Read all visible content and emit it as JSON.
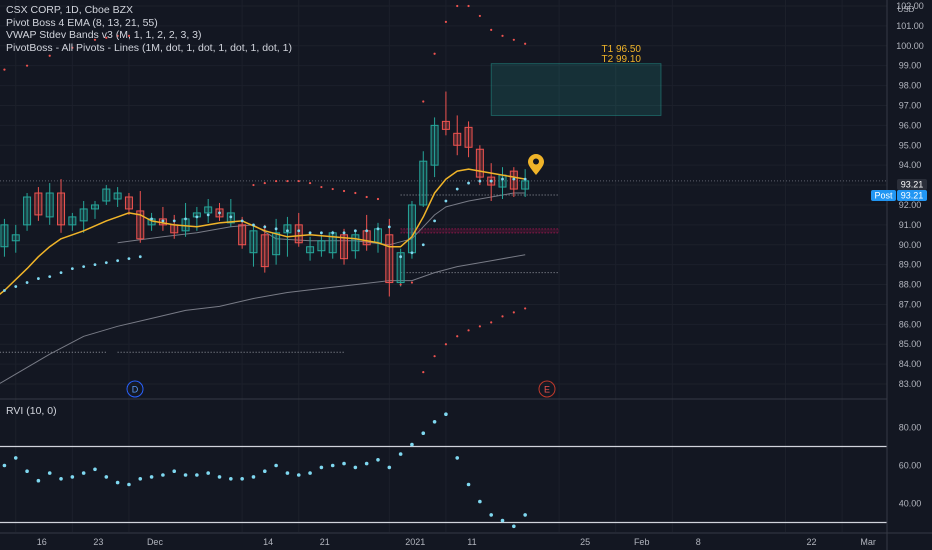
{
  "legend": {
    "title": "CSX CORP, 1D, Cboe BZX",
    "ind1": "Pivot Boss 4 EMA (8, 13, 21, 55)",
    "ind2": "VWAP Stdev Bands v3 (M, 1, 1, 2, 2, 3, 3)",
    "ind3": "PivotBoss - All Pivots - Lines (1M, dot, 1, dot, 1, dot, 1, dot, 1)"
  },
  "rvi_label": "RVI (10, 0)",
  "currency": "USD",
  "targets": {
    "t1": "T1 96.50",
    "t2": "T2 99.10"
  },
  "price_tags": {
    "last": "93.21",
    "post_label": "Post",
    "post": "93.21"
  },
  "markers": {
    "d": "D",
    "e": "E"
  },
  "colors": {
    "up": "#26a69a",
    "down": "#ef5350",
    "ema": "#f0b429",
    "vwap": "#787b86",
    "dots": "#7fd8f0",
    "bg": "#131722",
    "target_box": "#26a69a",
    "pin": "#f0b429"
  },
  "chart_data": [
    {
      "type": "candlestick",
      "title": "CSX CORP, 1D, Cboe BZX",
      "y_axis": {
        "ticks": [
          "83.00",
          "84.00",
          "85.00",
          "86.00",
          "87.00",
          "88.00",
          "89.00",
          "90.00",
          "91.00",
          "92.00",
          "93.00",
          "94.00",
          "95.00",
          "96.00",
          "97.00",
          "98.00",
          "99.00",
          "100.00",
          "101.00",
          "102.00"
        ],
        "ylim": [
          82.6,
          102.2
        ]
      },
      "x_axis": {
        "ticks": [
          {
            "label": "16",
            "i": 0
          },
          {
            "label": "23",
            "i": 5
          },
          {
            "label": "Dec",
            "i": 10
          },
          {
            "label": "14",
            "i": 20
          },
          {
            "label": "21",
            "i": 25
          },
          {
            "label": "2021",
            "i": 33
          },
          {
            "label": "11",
            "i": 38
          },
          {
            "label": "25",
            "i": 48
          },
          {
            "label": "Feb",
            "i": 53
          },
          {
            "label": "8",
            "i": 58
          },
          {
            "label": "22",
            "i": 68
          },
          {
            "label": "Mar",
            "i": 73
          }
        ],
        "first_index": -3,
        "last_index": 77
      },
      "candles": [
        {
          "i": -3,
          "o": 88.5,
          "h": 89.5,
          "l": 86.8,
          "c": 87.5
        },
        {
          "i": -2,
          "o": 89.2,
          "h": 90.2,
          "l": 87.9,
          "c": 89.6
        },
        {
          "i": -1,
          "o": 89.9,
          "h": 91.3,
          "l": 89.4,
          "c": 91.0
        },
        {
          "i": 0,
          "o": 90.2,
          "h": 91.0,
          "l": 89.6,
          "c": 90.5
        },
        {
          "i": 1,
          "o": 91.0,
          "h": 92.6,
          "l": 90.7,
          "c": 92.4
        },
        {
          "i": 2,
          "o": 92.6,
          "h": 92.9,
          "l": 91.2,
          "c": 91.5
        },
        {
          "i": 3,
          "o": 91.4,
          "h": 93.1,
          "l": 91.0,
          "c": 92.6
        },
        {
          "i": 4,
          "o": 92.6,
          "h": 93.3,
          "l": 90.6,
          "c": 91.0
        },
        {
          "i": 5,
          "o": 91.0,
          "h": 91.6,
          "l": 90.7,
          "c": 91.4
        },
        {
          "i": 6,
          "o": 91.2,
          "h": 92.2,
          "l": 90.6,
          "c": 91.8
        },
        {
          "i": 7,
          "o": 91.8,
          "h": 92.2,
          "l": 91.3,
          "c": 92.0
        },
        {
          "i": 8,
          "o": 92.2,
          "h": 93.0,
          "l": 92.0,
          "c": 92.8
        },
        {
          "i": 9,
          "o": 92.3,
          "h": 92.9,
          "l": 91.9,
          "c": 92.6
        },
        {
          "i": 10,
          "o": 92.4,
          "h": 92.6,
          "l": 91.5,
          "c": 91.8
        },
        {
          "i": 11,
          "o": 91.7,
          "h": 92.7,
          "l": 90.1,
          "c": 90.3
        },
        {
          "i": 12,
          "o": 91.0,
          "h": 91.6,
          "l": 90.7,
          "c": 91.3
        },
        {
          "i": 13,
          "o": 91.3,
          "h": 91.9,
          "l": 90.7,
          "c": 91.0
        },
        {
          "i": 14,
          "o": 91.0,
          "h": 91.5,
          "l": 90.3,
          "c": 90.6
        },
        {
          "i": 15,
          "o": 90.7,
          "h": 92.1,
          "l": 90.4,
          "c": 91.3
        },
        {
          "i": 16,
          "o": 91.4,
          "h": 91.9,
          "l": 90.7,
          "c": 91.6
        },
        {
          "i": 17,
          "o": 91.6,
          "h": 92.3,
          "l": 91.1,
          "c": 91.9
        },
        {
          "i": 18,
          "o": 91.8,
          "h": 92.1,
          "l": 91.2,
          "c": 91.4
        },
        {
          "i": 19,
          "o": 91.1,
          "h": 92.3,
          "l": 90.9,
          "c": 91.6
        },
        {
          "i": 20,
          "o": 91.0,
          "h": 91.4,
          "l": 89.8,
          "c": 90.0
        },
        {
          "i": 21,
          "o": 89.6,
          "h": 91.0,
          "l": 88.9,
          "c": 90.7
        },
        {
          "i": 22,
          "o": 90.5,
          "h": 91.0,
          "l": 88.6,
          "c": 88.9
        },
        {
          "i": 23,
          "o": 89.5,
          "h": 91.3,
          "l": 89.0,
          "c": 90.6
        },
        {
          "i": 24,
          "o": 90.6,
          "h": 91.4,
          "l": 89.4,
          "c": 91.0
        },
        {
          "i": 25,
          "o": 91.0,
          "h": 91.6,
          "l": 89.9,
          "c": 90.1
        },
        {
          "i": 26,
          "o": 89.6,
          "h": 90.4,
          "l": 89.2,
          "c": 89.9
        },
        {
          "i": 27,
          "o": 89.7,
          "h": 90.5,
          "l": 89.4,
          "c": 90.2
        },
        {
          "i": 28,
          "o": 89.6,
          "h": 90.7,
          "l": 89.3,
          "c": 90.6
        },
        {
          "i": 29,
          "o": 90.5,
          "h": 90.8,
          "l": 89.0,
          "c": 89.3
        },
        {
          "i": 30,
          "o": 89.7,
          "h": 90.7,
          "l": 89.3,
          "c": 90.5
        },
        {
          "i": 31,
          "o": 90.7,
          "h": 91.5,
          "l": 89.7,
          "c": 90.0
        },
        {
          "i": 32,
          "o": 90.1,
          "h": 91.1,
          "l": 89.6,
          "c": 90.8
        },
        {
          "i": 33,
          "o": 90.5,
          "h": 91.3,
          "l": 87.4,
          "c": 88.1
        },
        {
          "i": 34,
          "o": 88.1,
          "h": 89.8,
          "l": 87.9,
          "c": 89.6
        },
        {
          "i": 35,
          "o": 89.6,
          "h": 92.2,
          "l": 89.3,
          "c": 92.0
        },
        {
          "i": 36,
          "o": 92.0,
          "h": 94.7,
          "l": 91.9,
          "c": 94.2
        },
        {
          "i": 37,
          "o": 94.0,
          "h": 96.4,
          "l": 93.4,
          "c": 96.0
        },
        {
          "i": 38,
          "o": 96.2,
          "h": 97.7,
          "l": 95.5,
          "c": 95.8
        },
        {
          "i": 39,
          "o": 95.6,
          "h": 96.5,
          "l": 94.5,
          "c": 95.0
        },
        {
          "i": 40,
          "o": 95.9,
          "h": 96.2,
          "l": 94.4,
          "c": 94.9
        },
        {
          "i": 41,
          "o": 94.8,
          "h": 95.0,
          "l": 93.0,
          "c": 93.4
        },
        {
          "i": 42,
          "o": 93.4,
          "h": 94.1,
          "l": 92.2,
          "c": 93.0
        },
        {
          "i": 43,
          "o": 92.9,
          "h": 93.9,
          "l": 92.3,
          "c": 93.5
        },
        {
          "i": 44,
          "o": 93.7,
          "h": 93.9,
          "l": 92.4,
          "c": 92.8
        },
        {
          "i": 45,
          "o": 92.8,
          "h": 93.8,
          "l": 92.4,
          "c": 93.21
        }
      ],
      "series": [
        {
          "name": "Pivot Boss 4 EMA",
          "kind": "line",
          "points": [
            [
              -3,
              86.8
            ],
            [
              -1,
              87.7
            ],
            [
              1,
              88.8
            ],
            [
              2,
              89.4
            ],
            [
              3,
              89.9
            ],
            [
              4,
              90.3
            ],
            [
              6,
              90.7
            ],
            [
              8,
              91.2
            ],
            [
              9,
              91.4
            ],
            [
              10,
              91.6
            ],
            [
              11,
              91.5
            ],
            [
              12,
              91.2
            ],
            [
              14,
              91.0
            ],
            [
              16,
              90.9
            ],
            [
              18,
              91.1
            ],
            [
              20,
              91.2
            ],
            [
              22,
              90.7
            ],
            [
              24,
              90.4
            ],
            [
              26,
              90.5
            ],
            [
              28,
              90.4
            ],
            [
              30,
              90.3
            ],
            [
              32,
              90.1
            ],
            [
              33,
              89.9
            ],
            [
              34,
              89.9
            ],
            [
              35,
              90.4
            ],
            [
              36,
              91.4
            ],
            [
              37,
              92.6
            ],
            [
              38,
              93.3
            ],
            [
              39,
              93.7
            ],
            [
              40,
              93.8
            ],
            [
              42,
              93.6
            ],
            [
              44,
              93.4
            ],
            [
              45,
              93.3
            ]
          ]
        },
        {
          "name": "VWAP band upper",
          "kind": "line",
          "points": [
            [
              9,
              90.1
            ],
            [
              13,
              90.4
            ],
            [
              16,
              90.6
            ],
            [
              19,
              90.9
            ],
            [
              21,
              91.0
            ],
            [
              23,
              90.3
            ],
            [
              26,
              90.2
            ],
            [
              30,
              90.2
            ],
            [
              33,
              90.0
            ],
            [
              35,
              90.3
            ],
            [
              36,
              90.9
            ],
            [
              37,
              91.5
            ],
            [
              38,
              91.9
            ],
            [
              40,
              92.2
            ],
            [
              42,
              92.4
            ],
            [
              44,
              92.6
            ],
            [
              45,
              92.6
            ]
          ]
        },
        {
          "name": "VWAP band lower",
          "kind": "line",
          "points": [
            [
              -3,
              82.5
            ],
            [
              0,
              83.5
            ],
            [
              3,
              84.5
            ],
            [
              6,
              85.4
            ],
            [
              9,
              85.9
            ],
            [
              12,
              86.3
            ],
            [
              15,
              86.7
            ],
            [
              18,
              86.9
            ],
            [
              21,
              87.3
            ],
            [
              24,
              87.6
            ],
            [
              27,
              87.8
            ],
            [
              30,
              88.0
            ],
            [
              33,
              88.2
            ],
            [
              35,
              88.2
            ],
            [
              37,
              88.6
            ],
            [
              39,
              88.9
            ],
            [
              42,
              89.2
            ],
            [
              45,
              89.5
            ]
          ]
        },
        {
          "name": "Pivot dots",
          "kind": "dots",
          "points": [
            [
              -3,
              87.0
            ],
            [
              -2,
              87.5
            ],
            [
              -1,
              87.7
            ],
            [
              0,
              87.9
            ],
            [
              1,
              88.1
            ],
            [
              2,
              88.3
            ],
            [
              3,
              88.4
            ],
            [
              4,
              88.6
            ],
            [
              5,
              88.8
            ],
            [
              6,
              88.9
            ],
            [
              7,
              89.0
            ],
            [
              8,
              89.1
            ],
            [
              9,
              89.2
            ],
            [
              10,
              89.3
            ],
            [
              11,
              89.4
            ],
            [
              12,
              91.3
            ],
            [
              13,
              91.2
            ],
            [
              14,
              91.2
            ],
            [
              15,
              91.3
            ],
            [
              16,
              91.4
            ],
            [
              17,
              91.5
            ],
            [
              18,
              91.6
            ],
            [
              19,
              91.4
            ],
            [
              20,
              91.2
            ],
            [
              21,
              91.0
            ],
            [
              22,
              90.9
            ],
            [
              23,
              90.8
            ],
            [
              24,
              90.7
            ],
            [
              25,
              90.7
            ],
            [
              26,
              90.6
            ],
            [
              27,
              90.6
            ],
            [
              28,
              90.6
            ],
            [
              29,
              90.6
            ],
            [
              30,
              90.7
            ],
            [
              31,
              90.7
            ],
            [
              32,
              90.8
            ],
            [
              33,
              90.9
            ],
            [
              34,
              89.4
            ],
            [
              35,
              89.6
            ],
            [
              36,
              90.0
            ],
            [
              37,
              91.2
            ],
            [
              38,
              92.2
            ],
            [
              39,
              92.8
            ],
            [
              40,
              93.1
            ],
            [
              41,
              93.2
            ],
            [
              42,
              93.2
            ],
            [
              43,
              93.3
            ],
            [
              44,
              93.3
            ],
            [
              45,
              93.3
            ]
          ]
        }
      ],
      "pivot_lines": [
        {
          "y": 92.5,
          "from": 34,
          "to": 48
        },
        {
          "y": 90.8,
          "from": 34,
          "to": 48
        },
        {
          "y": 90.6,
          "from": 34,
          "to": 48
        },
        {
          "y": 88.6,
          "from": 34,
          "to": 48
        },
        {
          "y": 84.6,
          "from": -3,
          "to": 8
        },
        {
          "y": 84.6,
          "from": 9,
          "to": 29
        }
      ],
      "target_zone": {
        "from": 42,
        "to": 57,
        "low": 96.5,
        "high": 99.1
      },
      "current_price": 93.21
    },
    {
      "type": "scatter",
      "title": "RVI (10, 0)",
      "y_axis": {
        "ticks": [
          "40.00",
          "60.00",
          "80.00"
        ],
        "ylim": [
          25,
          95
        ]
      },
      "reference_lines": [
        70,
        30
      ],
      "points": [
        [
          -3,
          61
        ],
        [
          -2,
          53
        ],
        [
          -1,
          60
        ],
        [
          0,
          64
        ],
        [
          1,
          57
        ],
        [
          2,
          52
        ],
        [
          3,
          56
        ],
        [
          4,
          53
        ],
        [
          5,
          54
        ],
        [
          6,
          56
        ],
        [
          7,
          58
        ],
        [
          8,
          54
        ],
        [
          9,
          51
        ],
        [
          10,
          50
        ],
        [
          11,
          53
        ],
        [
          12,
          54
        ],
        [
          13,
          55
        ],
        [
          14,
          57
        ],
        [
          15,
          55
        ],
        [
          16,
          55
        ],
        [
          17,
          56
        ],
        [
          18,
          54
        ],
        [
          19,
          53
        ],
        [
          20,
          53
        ],
        [
          21,
          54
        ],
        [
          22,
          57
        ],
        [
          23,
          60
        ],
        [
          24,
          56
        ],
        [
          25,
          55
        ],
        [
          26,
          56
        ],
        [
          27,
          59
        ],
        [
          28,
          60
        ],
        [
          29,
          61
        ],
        [
          30,
          59
        ],
        [
          31,
          61
        ],
        [
          32,
          63
        ],
        [
          33,
          59
        ],
        [
          34,
          66
        ],
        [
          35,
          71
        ],
        [
          36,
          77
        ],
        [
          37,
          83
        ],
        [
          38,
          87
        ],
        [
          39,
          64
        ],
        [
          40,
          50
        ],
        [
          41,
          41
        ],
        [
          42,
          34
        ],
        [
          43,
          31
        ],
        [
          44,
          28
        ],
        [
          45,
          34
        ]
      ]
    }
  ]
}
